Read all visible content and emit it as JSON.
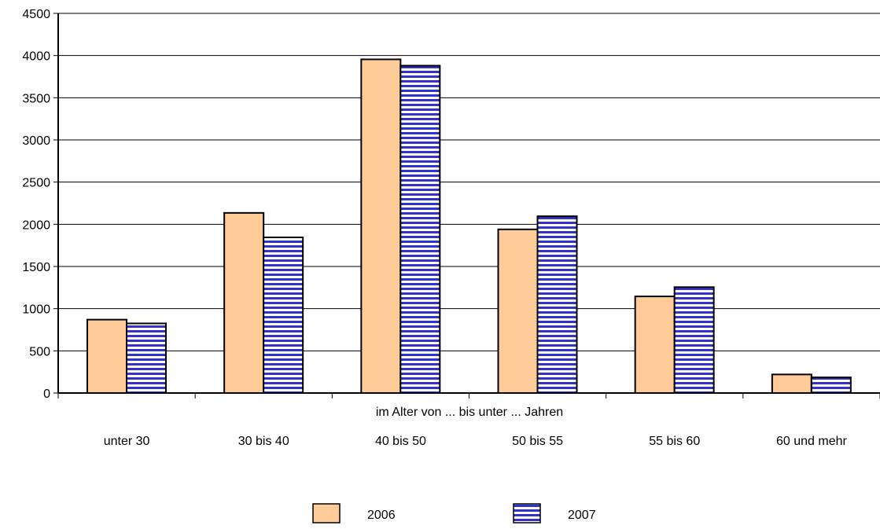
{
  "chart_data": {
    "type": "bar",
    "title": "",
    "xlabel": "im Alter von ... bis unter ... Jahren",
    "ylabel": "",
    "ylim": [
      0,
      4500
    ],
    "yticks": [
      0,
      500,
      1000,
      1500,
      2000,
      2500,
      3000,
      3500,
      4000,
      4500
    ],
    "categories": [
      "unter 30",
      "30 bis 40",
      "40 bis 50",
      "50 bis 55",
      "55 bis 60",
      "60 und mehr"
    ],
    "series": [
      {
        "name": "2006",
        "values": [
          870,
          2135,
          3955,
          1940,
          1145,
          220
        ],
        "color": "#FFCC99",
        "pattern": "solid"
      },
      {
        "name": "2007",
        "values": [
          825,
          1845,
          3880,
          2095,
          1255,
          185
        ],
        "color": "#3333CC",
        "pattern": "horizontal-stripes"
      }
    ],
    "grid": true,
    "legend_position": "bottom"
  }
}
